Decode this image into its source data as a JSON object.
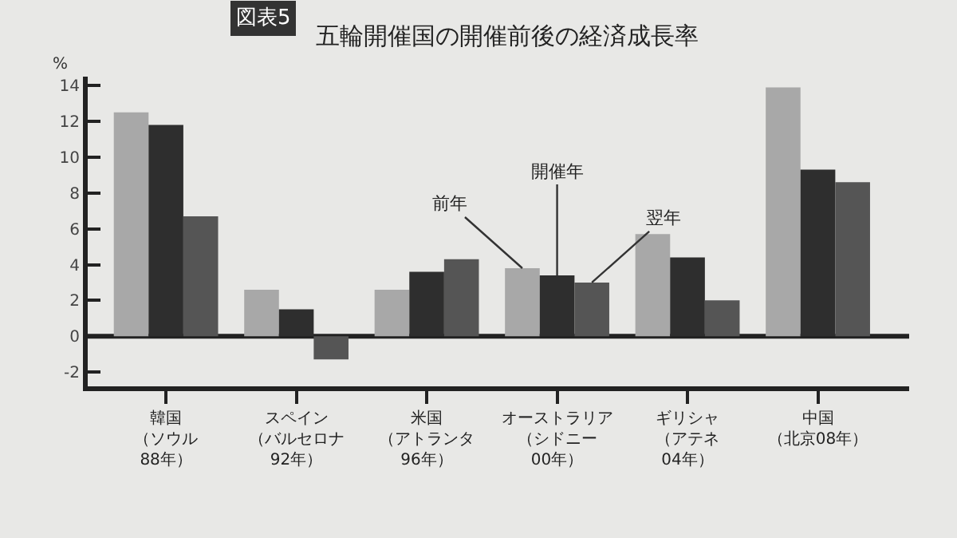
{
  "chart_data": {
    "type": "bar",
    "title": "五輪開催国の開催前後の経済成長率",
    "ylabel": "%",
    "annotations": [
      "図表5"
    ],
    "categories": [
      "韓国（ソウル88年）",
      "スペイン（バルセロナ92年）",
      "米国（アトランタ96年）",
      "オーストラリア（シドニー00年）",
      "ギリシャ（アテネ04年）",
      "中国（北京08年）"
    ],
    "series": [
      {
        "name": "前年",
        "color": "#a8a8a8",
        "values": [
          12.5,
          2.6,
          2.6,
          3.8,
          5.7,
          13.9
        ]
      },
      {
        "name": "開催年",
        "color": "#2e2e2e",
        "values": [
          11.8,
          1.5,
          3.6,
          3.4,
          4.4,
          9.3
        ]
      },
      {
        "name": "翌年",
        "color": "#555555",
        "values": [
          6.7,
          -1.3,
          4.3,
          3.0,
          2.0,
          8.6
        ]
      }
    ],
    "ylim": [
      -2.8,
      14.5
    ],
    "yticks": [
      -2,
      0,
      2,
      4,
      6,
      8,
      10,
      12,
      14
    ],
    "grid": false,
    "ref_lines": [
      {
        "axis": "y",
        "value": 0,
        "color": "#222222",
        "line_style": "solid"
      }
    ],
    "legend": false
  }
}
